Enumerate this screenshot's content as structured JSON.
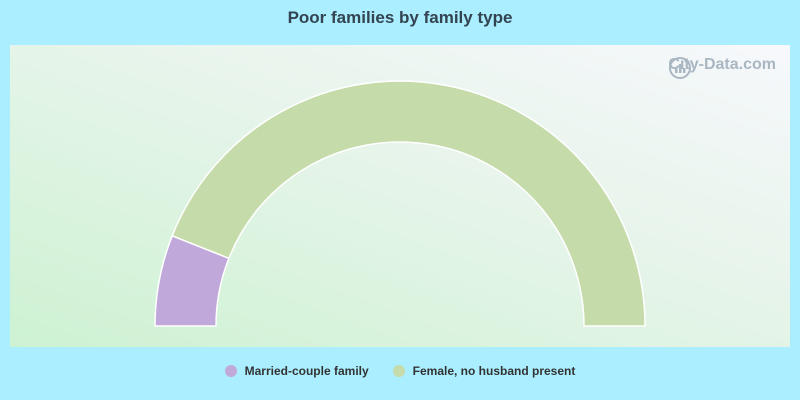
{
  "title": "Poor families by family type",
  "watermark": "City-Data.com",
  "chart_data": {
    "type": "pie",
    "variant": "half-donut",
    "title": "Poor families by family type",
    "categories": [
      "Married-couple family",
      "Female, no husband present"
    ],
    "values": [
      12.0,
      88.0
    ],
    "colors": [
      "#c0a9da",
      "#c5dba9"
    ],
    "legend_position": "bottom"
  }
}
